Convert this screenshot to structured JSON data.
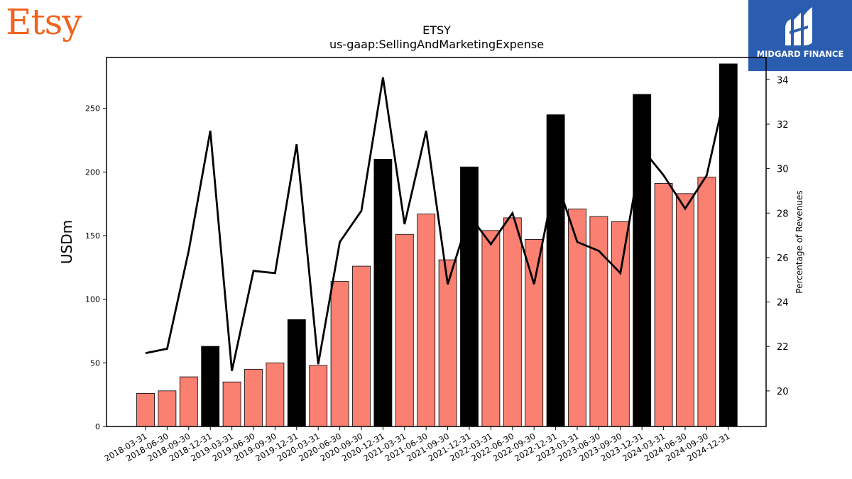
{
  "brand": {
    "logo_text": "Etsy",
    "badge_text": "MIDGARD FINANCE"
  },
  "chart_data": {
    "type": "bar",
    "title": "ETSY",
    "subtitle": "us-gaap:SellingAndMarketingExpense",
    "ylabel": "USDm",
    "y2label": "Percentage of Revenues",
    "ylim": [
      0,
      290
    ],
    "y2lim": [
      18.4,
      35
    ],
    "yticks": [
      0,
      50,
      100,
      150,
      200,
      250
    ],
    "y2ticks": [
      20,
      22,
      24,
      26,
      28,
      30,
      32,
      34
    ],
    "categories": [
      "2018-03-31",
      "2018-06-30",
      "2018-09-30",
      "2018-12-31",
      "2019-03-31",
      "2019-06-30",
      "2019-09-30",
      "2019-12-31",
      "2020-03-31",
      "2020-06-30",
      "2020-09-30",
      "2020-12-31",
      "2021-03-31",
      "2021-06-30",
      "2021-09-30",
      "2021-12-31",
      "2022-03-31",
      "2022-06-30",
      "2022-09-30",
      "2022-12-31",
      "2023-03-31",
      "2023-06-30",
      "2023-09-30",
      "2023-12-31",
      "2024-03-31",
      "2024-06-30",
      "2024-09-30",
      "2024-12-31"
    ],
    "series": [
      {
        "values": [
          26,
          28,
          39,
          63,
          35,
          45,
          50,
          84,
          48,
          114,
          126,
          210,
          151,
          167,
          131,
          204,
          154,
          164,
          147,
          245,
          171,
          165,
          161,
          261,
          191,
          183,
          196,
          285
        ]
      },
      {
        "axis": "right",
        "values": [
          21.7,
          21.9,
          26.3,
          31.7,
          20.9,
          25.4,
          25.3,
          31.1,
          21.2,
          26.7,
          28.1,
          34.1,
          27.5,
          31.7,
          24.8,
          27.9,
          26.6,
          28.0,
          24.8,
          29.6,
          26.7,
          26.3,
          25.3,
          30.9,
          29.7,
          28.2,
          29.7,
          34.0
        ]
      }
    ],
    "colors": {
      "bar_normal": "#fa8072",
      "bar_q4": "#000000",
      "line": "#000000"
    },
    "grid": false
  }
}
